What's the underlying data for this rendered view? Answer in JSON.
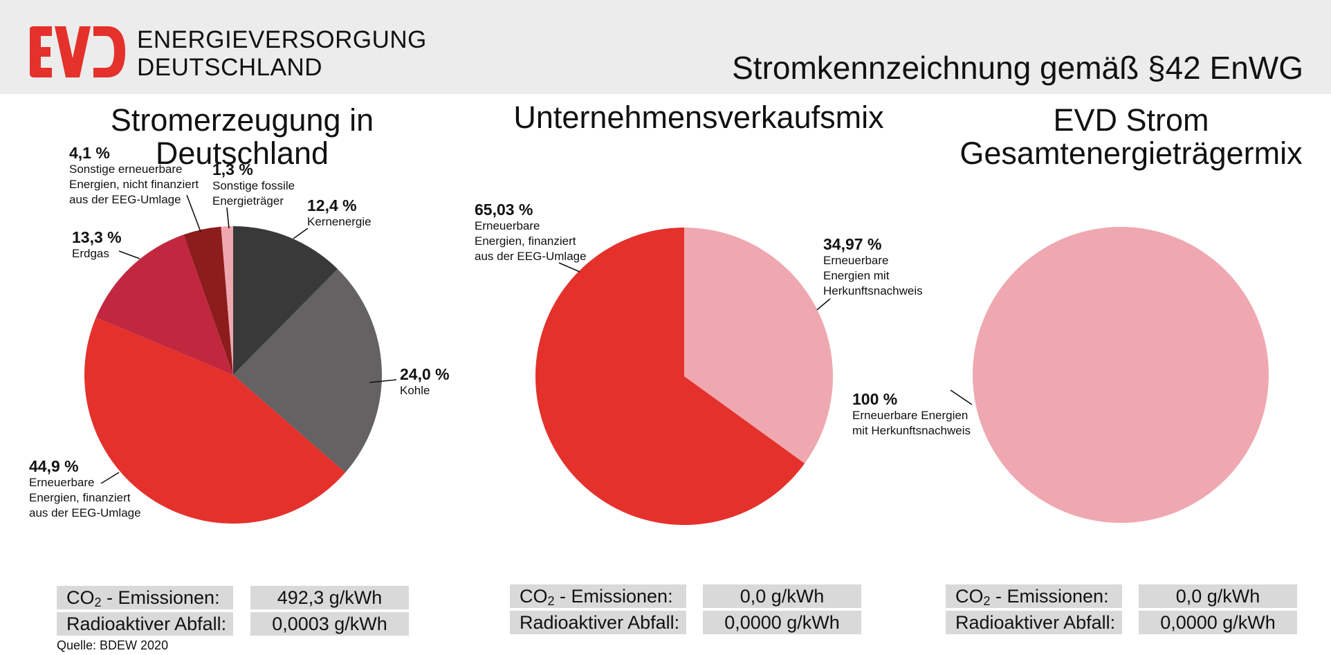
{
  "header": {
    "logo_text": "EVD",
    "company_line1": "ENERGIEVERSORGUNG",
    "company_line2": "DEUTSCHLAND",
    "title": "Stromkennzeichnung gemäß §42 EnWG"
  },
  "chart_data": [
    {
      "type": "pie",
      "title": "Stromerzeugung in Deutschland",
      "slices": [
        {
          "label": "Kernenergie",
          "value": 12.4,
          "pct": "12,4 %",
          "color": "#3a393a"
        },
        {
          "label": "Kohle",
          "value": 24.0,
          "pct": "24,0 %",
          "color": "#646263"
        },
        {
          "label": "Erneuerbare Energien, finanziert aus der EEG-Umlage",
          "value": 44.9,
          "pct": "44,9 %",
          "color": "#e5312c"
        },
        {
          "label": "Erdgas",
          "value": 13.3,
          "pct": "13,3 %",
          "color": "#c1283f"
        },
        {
          "label": "Sonstige erneuerbare Energien, nicht finanziert aus der EEG-Umlage",
          "value": 4.1,
          "pct": "4,1 %",
          "color": "#8d1c1c"
        },
        {
          "label": "Sonstige fossile Energieträger",
          "value": 1.3,
          "pct": "1,3 %",
          "color": "#efa8b0"
        }
      ],
      "metrics": {
        "co2_label": "CO",
        "co2_sub": "2",
        "co2_suffix": " - Emissionen:",
        "co2_value": "492,3 g/kWh",
        "waste_label": "Radioaktiver Abfall:",
        "waste_value": "0,0003 g/kWh"
      },
      "source": "Quelle: BDEW 2020"
    },
    {
      "type": "pie",
      "title": "Unternehmensverkaufsmix",
      "slices": [
        {
          "label": "Erneuerbare Energien mit Herkunftsnachweis",
          "value": 34.97,
          "pct": "34,97 %",
          "color": "#efa8b0"
        },
        {
          "label": "Erneuerbare Energien, finanziert aus der EEG-Umlage",
          "value": 65.03,
          "pct": "65,03 %",
          "color": "#e5312c"
        }
      ],
      "metrics": {
        "co2_label": "CO",
        "co2_sub": "2",
        "co2_suffix": " - Emissionen:",
        "co2_value": "0,0 g/kWh",
        "waste_label": "Radioaktiver Abfall:",
        "waste_value": "0,0000 g/kWh"
      }
    },
    {
      "type": "pie",
      "title_line1": "EVD Strom",
      "title_line2": "Gesamtenergieträgermix",
      "slices": [
        {
          "label": "Erneuerbare Energien mit Herkunftsnachweis",
          "value": 100,
          "pct": "100 %",
          "color": "#efa8b0"
        }
      ],
      "metrics": {
        "co2_label": "CO",
        "co2_sub": "2",
        "co2_suffix": " - Emissionen:",
        "co2_value": "0,0 g/kWh",
        "waste_label": "Radioaktiver Abfall:",
        "waste_value": "0,0000 g/kWh"
      }
    }
  ],
  "labels": {
    "c1_kern_desc": "Kernenergie",
    "c1_kohle_desc": "Kohle",
    "c1_ee_desc": "Erneuerbare\nEnergien, finanziert\naus der EEG-Umlage",
    "c1_gas_desc": "Erdgas",
    "c1_sonst_ee_desc": "Sonstige erneuerbare\nEnergien, nicht finanziert\naus der EEG-Umlage",
    "c1_fossil_desc": "Sonstige fossile\nEnergieträger",
    "c2_ee_desc": "Erneuerbare\nEnergien, finanziert\naus der EEG-Umlage",
    "c2_hkn_desc": "Erneuerbare\nEnergien mit\nHerkunftsnachweis",
    "c3_desc": "Erneuerbare Energien\nmit Herkunftsnachweis"
  }
}
